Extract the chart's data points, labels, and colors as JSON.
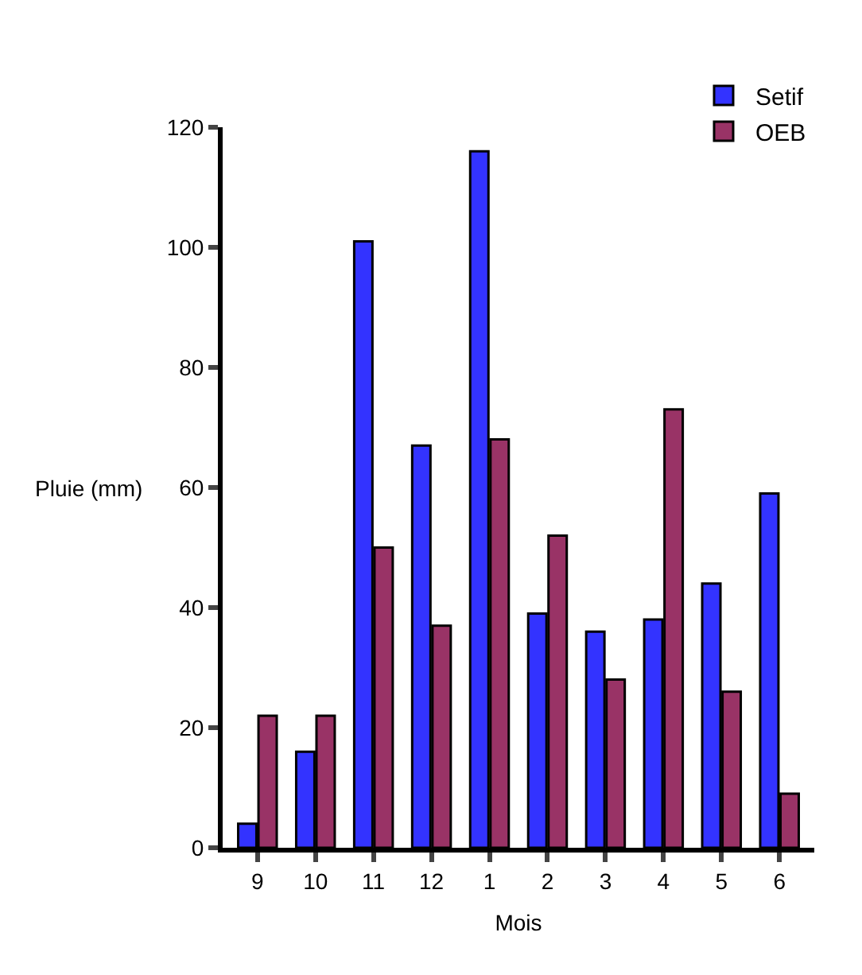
{
  "chart_data": {
    "type": "bar",
    "xlabel": "Mois",
    "ylabel": "Pluie (mm)",
    "categories": [
      "9",
      "10",
      "11",
      "12",
      "1",
      "2",
      "3",
      "4",
      "5",
      "6"
    ],
    "series": [
      {
        "name": "Setif",
        "color": "#3333ff",
        "values": [
          4,
          16,
          101,
          67,
          116,
          39,
          36,
          38,
          44,
          59
        ]
      },
      {
        "name": "OEB",
        "color": "#993366",
        "values": [
          22,
          22,
          50,
          37,
          68,
          52,
          28,
          73,
          26,
          9
        ]
      }
    ],
    "ylim": [
      0,
      120
    ],
    "yticks": [
      0,
      20,
      40,
      60,
      80,
      100,
      120
    ],
    "legend": "top right"
  }
}
